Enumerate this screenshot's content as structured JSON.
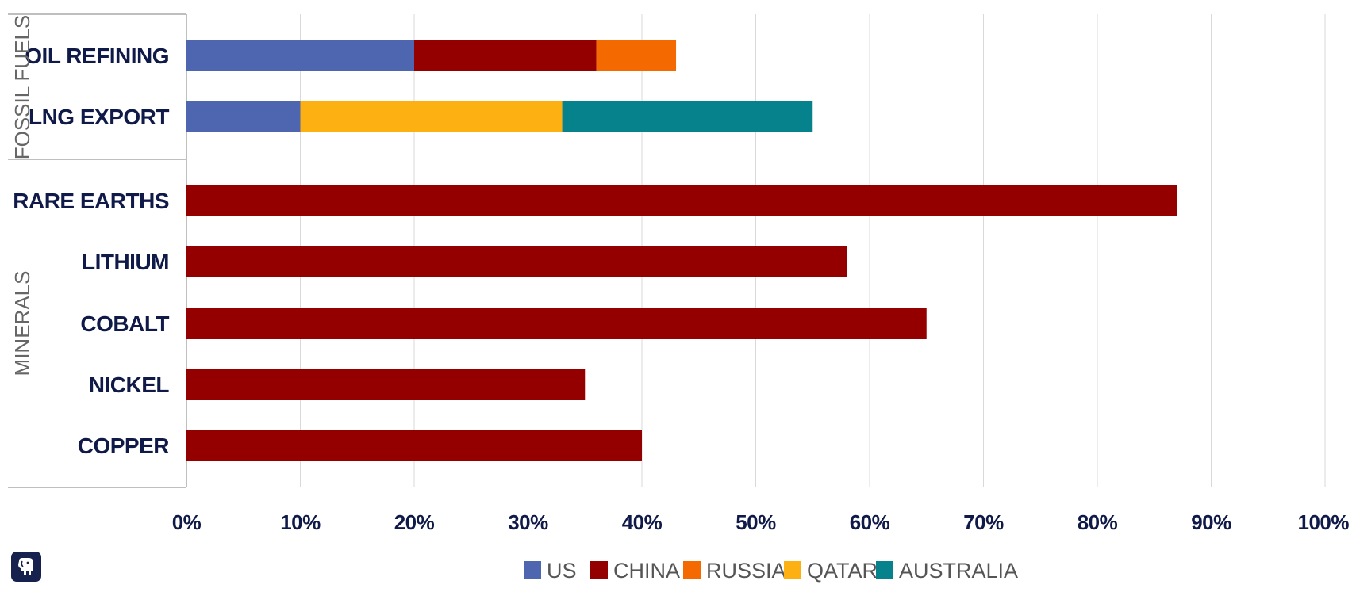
{
  "colors": {
    "US": "#4e66b0",
    "CHINA": "#940000",
    "RUSSIA": "#f46a00",
    "QATAR": "#fdb012",
    "AUSTRALIA": "#06828d",
    "grid": "#d9d9d9",
    "axis": "#bfbfbf"
  },
  "chart_data": {
    "type": "bar",
    "orientation": "horizontal",
    "stacked": true,
    "title": "",
    "xlabel": "",
    "ylabel": "",
    "xlim": [
      0,
      100
    ],
    "x_ticks": [
      "0%",
      "10%",
      "20%",
      "30%",
      "40%",
      "50%",
      "60%",
      "70%",
      "80%",
      "90%",
      "100%"
    ],
    "grid": true,
    "legend_position": "bottom",
    "legend": [
      "US",
      "CHINA",
      "RUSSIA",
      "QATAR",
      "AUSTRALIA"
    ],
    "groups": [
      {
        "name": "FOSSIL FUELS",
        "categories": [
          "OIL REFINING",
          "LNG EXPORT"
        ]
      },
      {
        "name": "MINERALS",
        "categories": [
          "RARE EARTHS",
          "LITHIUM",
          "COBALT",
          "NICKEL",
          "COPPER"
        ]
      }
    ],
    "categories": [
      "OIL REFINING",
      "LNG EXPORT",
      "RARE EARTHS",
      "LITHIUM",
      "COBALT",
      "NICKEL",
      "COPPER"
    ],
    "series": [
      {
        "name": "US",
        "values": [
          20,
          10,
          0,
          0,
          0,
          0,
          0
        ]
      },
      {
        "name": "CHINA",
        "values": [
          16,
          0,
          87,
          58,
          65,
          35,
          40
        ]
      },
      {
        "name": "RUSSIA",
        "values": [
          7,
          0,
          0,
          0,
          0,
          0,
          0
        ]
      },
      {
        "name": "QATAR",
        "values": [
          0,
          23,
          0,
          0,
          0,
          0,
          0
        ]
      },
      {
        "name": "AUSTRALIA",
        "values": [
          0,
          22,
          0,
          0,
          0,
          0,
          0
        ]
      }
    ]
  }
}
